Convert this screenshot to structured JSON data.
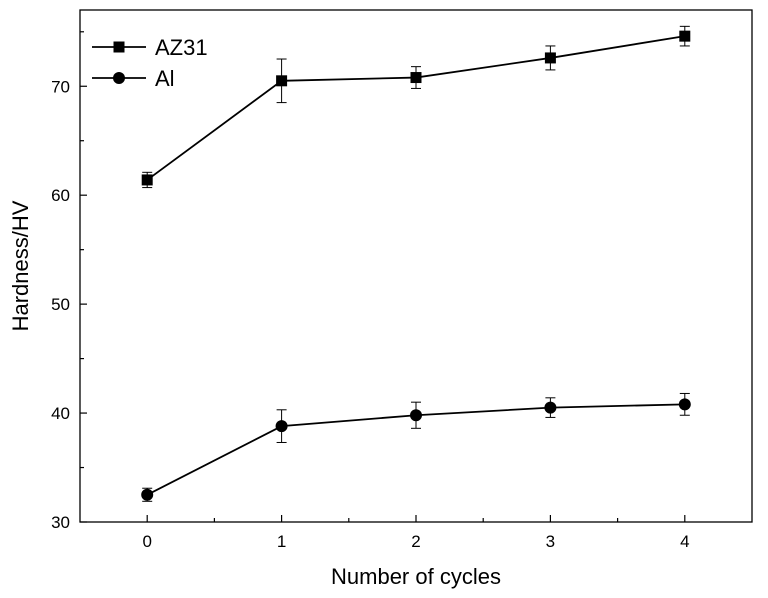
{
  "chart_data": {
    "type": "line",
    "title": "",
    "xlabel": "Number of cycles",
    "ylabel": "Hardness/HV",
    "x": [
      0,
      1,
      2,
      3,
      4
    ],
    "xlim": [
      -0.5,
      4.5
    ],
    "ylim": [
      30,
      77
    ],
    "x_ticks": [
      0,
      1,
      2,
      3,
      4
    ],
    "y_ticks": [
      30,
      40,
      50,
      60,
      70
    ],
    "grid": false,
    "legend_position": "top-left",
    "series": [
      {
        "name": "AZ31",
        "marker": "square",
        "values": [
          61.4,
          70.5,
          70.8,
          72.6,
          74.6
        ],
        "error": [
          0.7,
          2.0,
          1.0,
          1.1,
          0.9
        ]
      },
      {
        "name": "Al",
        "marker": "circle",
        "values": [
          32.5,
          38.8,
          39.8,
          40.5,
          40.8
        ],
        "error": [
          0.6,
          1.5,
          1.2,
          0.9,
          1.0
        ]
      }
    ]
  }
}
